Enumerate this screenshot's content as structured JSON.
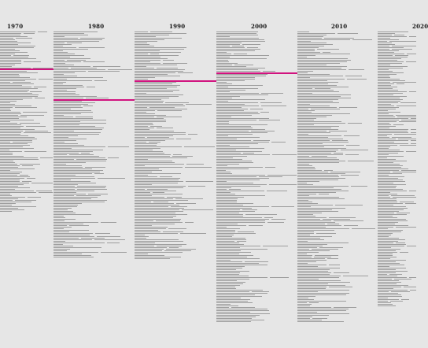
{
  "decades": [
    {
      "label": "1970"
    },
    {
      "label": "1980"
    },
    {
      "label": "1990"
    },
    {
      "label": "2000"
    },
    {
      "label": "2010"
    },
    {
      "label": "2020"
    }
  ],
  "colors": {
    "background": "#e6e6e6",
    "text_lines": "#8f8f8f",
    "marker": "#d1137f"
  }
}
